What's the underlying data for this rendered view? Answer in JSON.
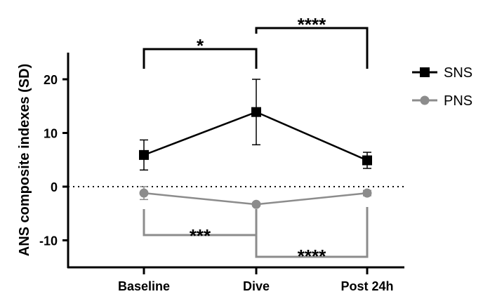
{
  "chart_data": {
    "type": "line",
    "ylabel": "ANS composite indexes (SD)",
    "xlabel": "",
    "categories": [
      "Baseline",
      "Dive",
      "Post 24h"
    ],
    "ylim": [
      -15,
      25
    ],
    "yticks": [
      20,
      10,
      0,
      -10
    ],
    "grid": false,
    "zero_line": "dotted",
    "legend_position": "top-right",
    "series": [
      {
        "name": "SNS",
        "color": "#000000",
        "marker": "square",
        "values": [
          5.9,
          13.9,
          4.9
        ],
        "error": [
          2.8,
          6.1,
          1.5
        ]
      },
      {
        "name": "PNS",
        "color": "#8c8c8c",
        "marker": "circle",
        "values": [
          -1.2,
          -3.3,
          -1.2
        ],
        "error": [
          1.2,
          0.3,
          0.5
        ]
      }
    ],
    "annotations": [
      {
        "label": "*",
        "from": "Baseline",
        "to": "Dive",
        "series": "SNS",
        "color": "#000000",
        "side": "above"
      },
      {
        "label": "****",
        "from": "Dive",
        "to": "Post 24h",
        "series": "SNS",
        "color": "#000000",
        "side": "above"
      },
      {
        "label": "***",
        "from": "Baseline",
        "to": "Dive",
        "series": "PNS",
        "color": "#8c8c8c",
        "side": "below"
      },
      {
        "label": "****",
        "from": "Dive",
        "to": "Post 24h",
        "series": "PNS",
        "color": "#8c8c8c",
        "side": "below"
      }
    ]
  }
}
